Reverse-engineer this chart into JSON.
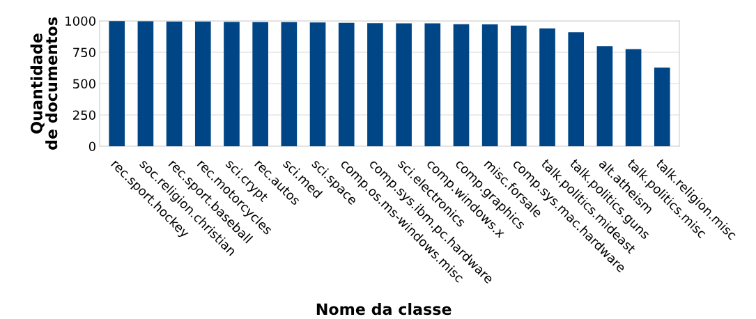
{
  "chart_data": {
    "type": "bar",
    "xlabel": "Nome da classe",
    "ylabel": "Quantidade\nde documentos",
    "categories": [
      "rec.sport.hockey",
      "soc.religion.christian",
      "rec.sport.baseball",
      "rec.motorcycles",
      "sci.crypt",
      "rec.autos",
      "sci.med",
      "sci.space",
      "comp.os.ms-windows.misc",
      "comp.sys.ibm.pc.hardware",
      "sci.electronics",
      "comp.windows.x",
      "comp.graphics",
      "misc.forsale",
      "comp.sys.mac.hardware",
      "talk.politics.mideast",
      "talk.politics.guns",
      "alt.atheism",
      "talk.politics.misc",
      "talk.religion.misc"
    ],
    "values": [
      999,
      997,
      994,
      994,
      991,
      990,
      990,
      987,
      985,
      982,
      981,
      980,
      973,
      972,
      963,
      940,
      910,
      799,
      775,
      628
    ],
    "color": "#004586",
    "ylim": [
      0,
      1000
    ],
    "yticks": [
      0,
      250,
      500,
      750,
      1000
    ],
    "grid": "y",
    "legend": false
  }
}
